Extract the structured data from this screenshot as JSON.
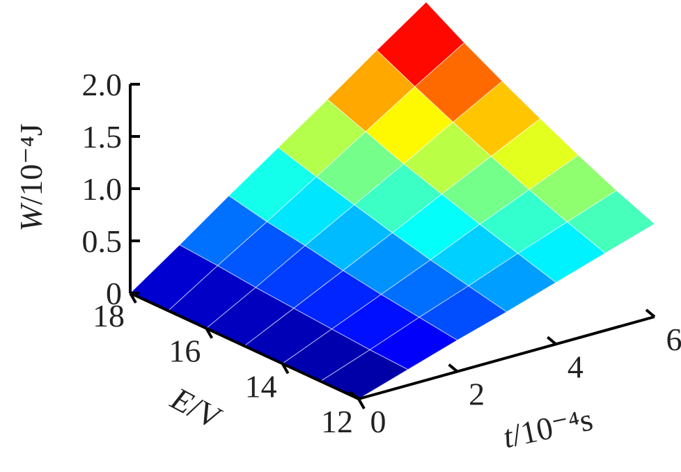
{
  "chart_data": {
    "type": "surface",
    "xlabel": [
      "E",
      "/V"
    ],
    "ylabel": [
      "t",
      "/10⁻⁴s"
    ],
    "zlabel": [
      "W",
      "/10⁻⁴J"
    ],
    "x": [
      12,
      13,
      14,
      15,
      16,
      17,
      18
    ],
    "y": [
      0,
      1,
      2,
      3,
      4,
      5,
      6
    ],
    "z": [
      [
        0,
        0.15,
        0.3,
        0.44,
        0.59,
        0.74,
        0.89
      ],
      [
        0,
        0.17,
        0.35,
        0.52,
        0.7,
        0.87,
        1.04
      ],
      [
        0,
        0.2,
        0.4,
        0.6,
        0.81,
        1.01,
        1.21
      ],
      [
        0,
        0.23,
        0.46,
        0.69,
        0.93,
        1.16,
        1.39
      ],
      [
        0,
        0.26,
        0.53,
        0.79,
        1.05,
        1.32,
        1.58
      ],
      [
        0,
        0.3,
        0.59,
        0.89,
        1.19,
        1.49,
        1.78
      ],
      [
        0,
        0.33,
        0.67,
        1.0,
        1.33,
        1.67,
        2.0
      ]
    ],
    "xlim": [
      12,
      18
    ],
    "ylim": [
      0,
      6
    ],
    "zlim": [
      0,
      2
    ],
    "xticks": [
      12,
      14,
      16,
      18
    ],
    "yticks": [
      0,
      2,
      4,
      6
    ],
    "zticks": [
      0,
      0.5,
      {
        "value": 1,
        "label": "1.0"
      },
      1.5,
      {
        "value": 2,
        "label": "2.0"
      }
    ],
    "colormap": "jet"
  }
}
